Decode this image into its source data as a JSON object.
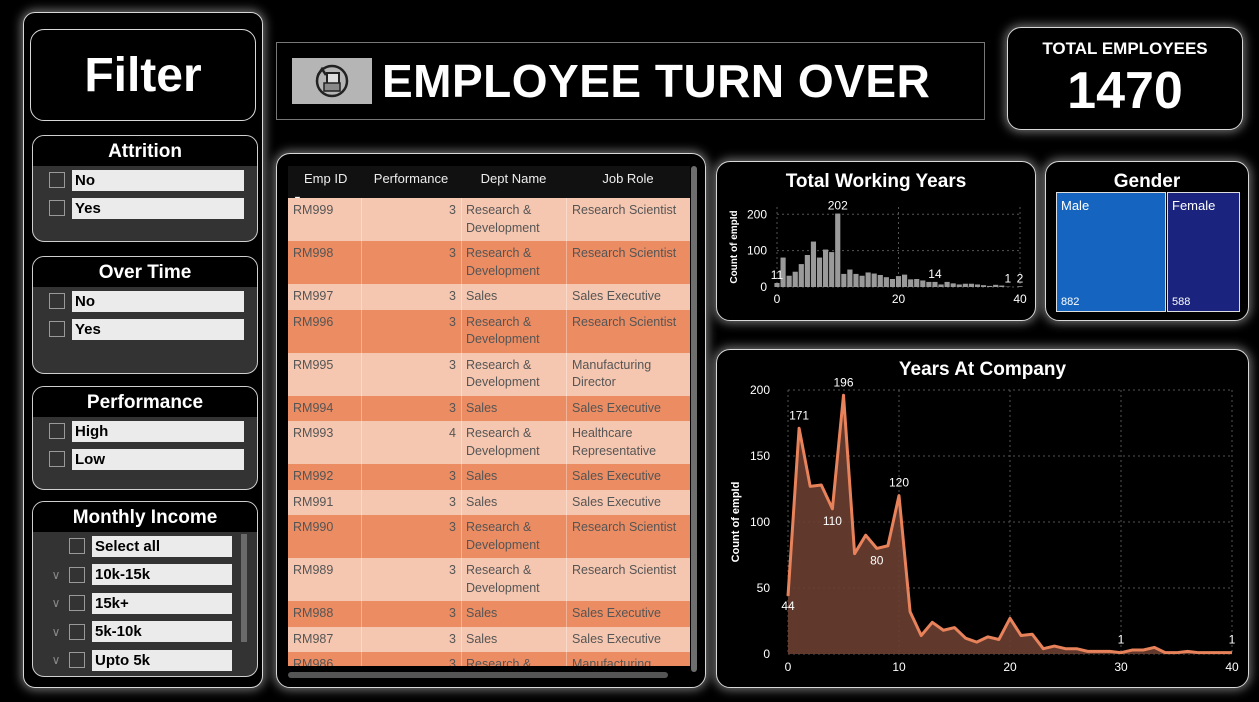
{
  "filter": {
    "title": "Filter",
    "attrition": {
      "label": "Attrition",
      "options": [
        "No",
        "Yes"
      ]
    },
    "overtime": {
      "label": "Over Time",
      "options": [
        "No",
        "Yes"
      ]
    },
    "performance": {
      "label": "Performance",
      "options": [
        "High",
        "Low"
      ]
    },
    "monthly_income": {
      "label": "Monthly Income",
      "options": [
        "Select all",
        "10k-15k",
        "15k+",
        "5k-10k",
        "Upto 5k"
      ]
    }
  },
  "banner": {
    "title": "EMPLOYEE TURN OVER",
    "icon": "money-exchange-icon"
  },
  "kpi": {
    "label": "TOTAL EMPLOYEES",
    "value": "1470"
  },
  "table": {
    "columns": [
      "Emp ID",
      "Performance",
      "Dept Name",
      "Job Role"
    ],
    "rows": [
      [
        "RM999",
        "3",
        "Research & Development",
        "Research Scientist"
      ],
      [
        "RM998",
        "3",
        "Research & Development",
        "Research Scientist"
      ],
      [
        "RM997",
        "3",
        "Sales",
        "Sales Executive"
      ],
      [
        "RM996",
        "3",
        "Research & Development",
        "Research Scientist"
      ],
      [
        "RM995",
        "3",
        "Research & Development",
        "Manufacturing Director"
      ],
      [
        "RM994",
        "3",
        "Sales",
        "Sales Executive"
      ],
      [
        "RM993",
        "4",
        "Research & Development",
        "Healthcare Representative"
      ],
      [
        "RM992",
        "3",
        "Sales",
        "Sales Executive"
      ],
      [
        "RM991",
        "3",
        "Sales",
        "Sales Executive"
      ],
      [
        "RM990",
        "3",
        "Research & Development",
        "Research Scientist"
      ],
      [
        "RM989",
        "3",
        "Research & Development",
        "Research Scientist"
      ],
      [
        "RM988",
        "3",
        "Sales",
        "Sales Executive"
      ],
      [
        "RM987",
        "3",
        "Sales",
        "Sales Executive"
      ],
      [
        "RM986",
        "3",
        "Research & Development",
        "Manufacturing Director"
      ],
      [
        "",
        "",
        "",
        ""
      ]
    ]
  },
  "colors": {
    "bar": "#9a9a9a",
    "area_line": "#e8825a",
    "area_fill": "#6b3f31",
    "male": "#1565c0",
    "female": "#1a237e",
    "row_light": "#f6c7b0",
    "row_dark": "#ec8c62"
  },
  "chart_data": [
    {
      "type": "bar",
      "title": "Total Working Years",
      "ylabel": "Count of empId",
      "xlabel": "",
      "x": [
        0,
        1,
        2,
        3,
        4,
        5,
        6,
        7,
        8,
        9,
        10,
        11,
        12,
        13,
        14,
        15,
        16,
        17,
        18,
        19,
        20,
        21,
        22,
        23,
        24,
        25,
        26,
        27,
        28,
        29,
        30,
        31,
        32,
        33,
        34,
        35,
        36,
        37,
        38,
        40
      ],
      "values": [
        11,
        81,
        31,
        42,
        63,
        88,
        125,
        81,
        103,
        96,
        202,
        36,
        48,
        36,
        31,
        40,
        37,
        33,
        27,
        22,
        30,
        34,
        21,
        22,
        18,
        14,
        14,
        7,
        14,
        10,
        7,
        9,
        9,
        7,
        5,
        3,
        6,
        4,
        1,
        2
      ],
      "ylim": [
        0,
        220
      ],
      "xlim": [
        0,
        40
      ],
      "yticks": [
        0,
        100,
        200
      ],
      "xticks": [
        0,
        20,
        40
      ],
      "data_labels": [
        {
          "x": 0,
          "text": "11"
        },
        {
          "x": 10,
          "text": "202"
        },
        {
          "x": 26,
          "text": "14"
        },
        {
          "x": 38,
          "text": "1"
        },
        {
          "x": 40,
          "text": "2"
        }
      ],
      "grid": true
    },
    {
      "type": "treemap",
      "title": "Gender",
      "categories": [
        "Male",
        "Female"
      ],
      "values": [
        882,
        588
      ]
    },
    {
      "type": "area",
      "title": "Years At Company",
      "ylabel": "Count of empId",
      "xlabel": "",
      "x": [
        0,
        1,
        2,
        3,
        4,
        5,
        6,
        7,
        8,
        9,
        10,
        11,
        12,
        13,
        14,
        15,
        16,
        17,
        18,
        19,
        20,
        21,
        22,
        23,
        24,
        25,
        26,
        27,
        28,
        29,
        30,
        31,
        32,
        33,
        34,
        35,
        36,
        37,
        38,
        39,
        40
      ],
      "values": [
        44,
        171,
        127,
        128,
        110,
        196,
        76,
        90,
        80,
        82,
        120,
        32,
        14,
        24,
        18,
        20,
        12,
        9,
        13,
        11,
        27,
        14,
        15,
        4,
        6,
        4,
        4,
        2,
        2,
        2,
        1,
        3,
        3,
        5,
        1,
        1,
        2,
        1,
        1,
        1,
        1
      ],
      "ylim": [
        0,
        200
      ],
      "xlim": [
        0,
        40
      ],
      "yticks": [
        0,
        50,
        100,
        150,
        200
      ],
      "xticks": [
        0,
        10,
        20,
        30,
        40
      ],
      "data_labels": [
        {
          "x": 0,
          "text": "44"
        },
        {
          "x": 1,
          "text": "171"
        },
        {
          "x": 4,
          "text": "110"
        },
        {
          "x": 5,
          "text": "196"
        },
        {
          "x": 8,
          "text": "80"
        },
        {
          "x": 10,
          "text": "120"
        },
        {
          "x": 30,
          "text": "1"
        },
        {
          "x": 40,
          "text": "1"
        }
      ],
      "grid": true
    }
  ]
}
